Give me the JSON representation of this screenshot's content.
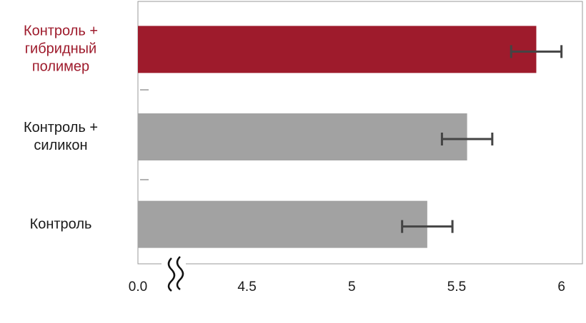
{
  "chart_data": {
    "type": "hbar",
    "categories": [
      "Контроль +\nгибридный\nполимер",
      "Контроль +\nсиликон",
      "Контроль"
    ],
    "values": [
      5.88,
      5.55,
      5.36
    ],
    "errors": [
      0.12,
      0.12,
      0.12
    ],
    "colors": [
      "#9e1b2c",
      "#a2a2a2",
      "#a2a2a2"
    ],
    "label_colors": [
      "#9e1b2c",
      "#1a1a1a",
      "#1a1a1a"
    ],
    "error_color": "#444444",
    "xlim": [
      0,
      6.1
    ],
    "axis_break": [
      0,
      3.98
    ],
    "xticks": [
      {
        "value": 0,
        "label": "0.0"
      },
      4.5,
      5.0,
      5.5,
      6.0
    ]
  }
}
